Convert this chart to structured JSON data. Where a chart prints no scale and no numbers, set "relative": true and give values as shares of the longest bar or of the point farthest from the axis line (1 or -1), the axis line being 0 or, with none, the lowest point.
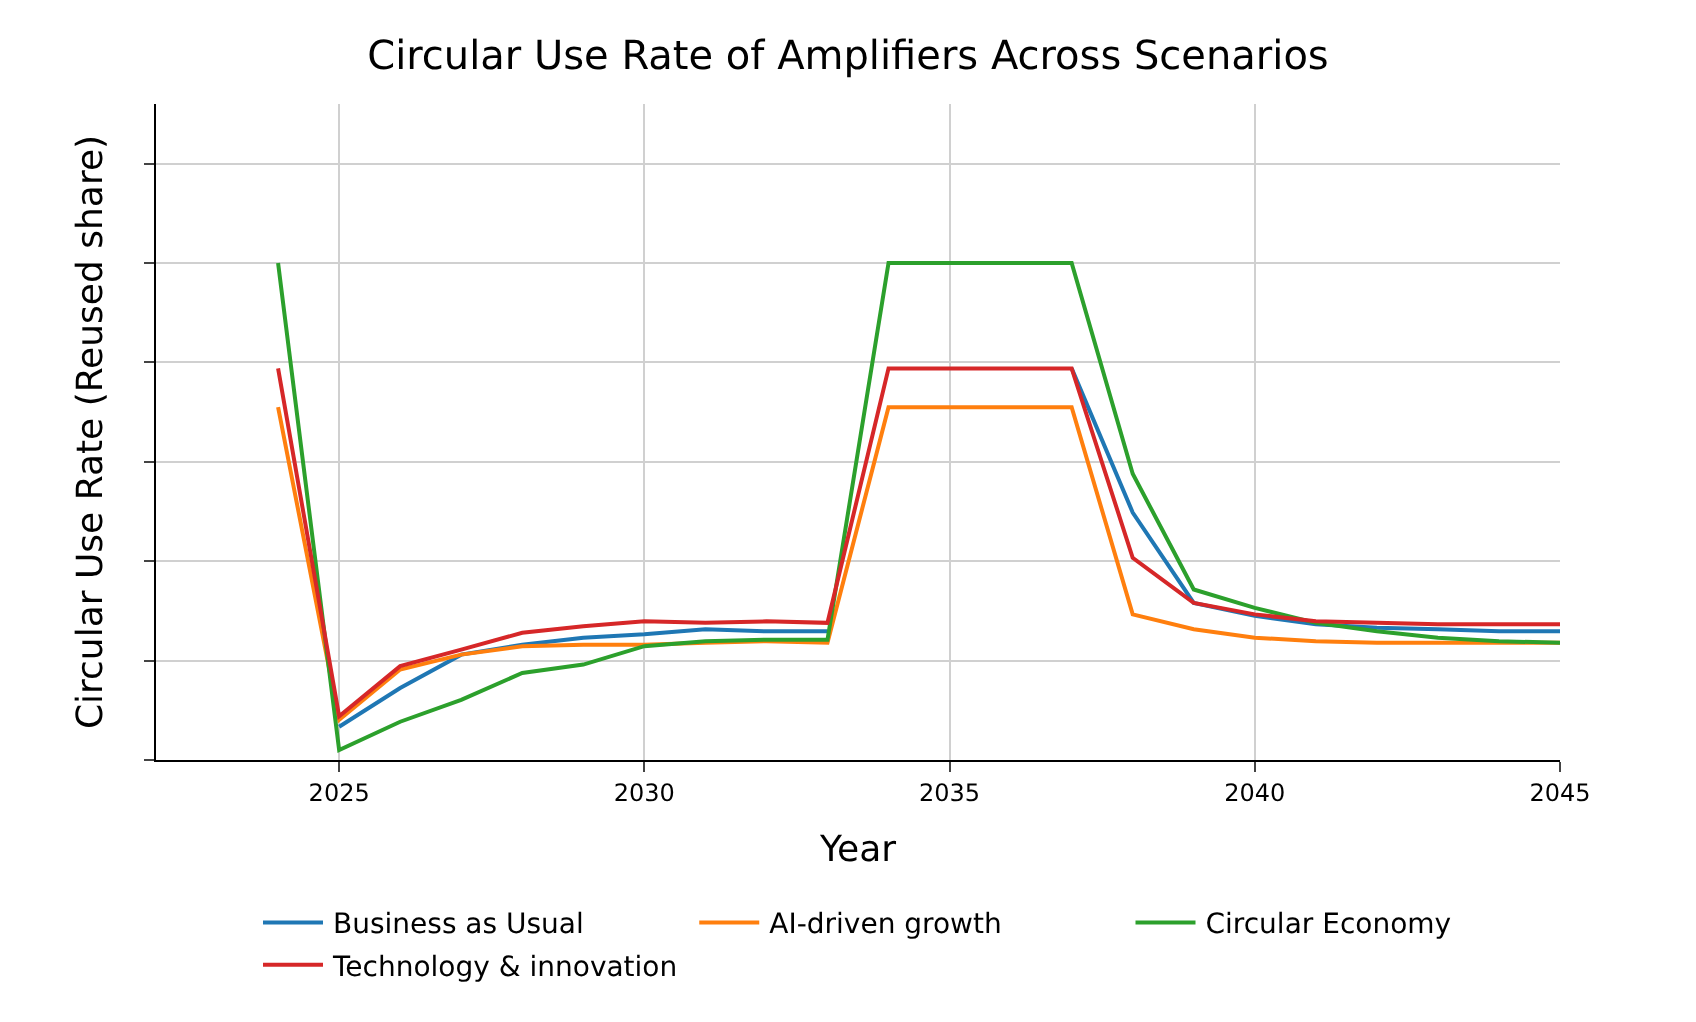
{
  "chart_data": {
    "type": "line",
    "title": "Circular Use Rate of Amplifiers Across Scenarios",
    "xlabel": "Year",
    "ylabel": "Circular Use Rate (Reused share)",
    "relative": true,
    "tick_labels": "x",
    "grid": true,
    "legend": "bottom",
    "line_style": "solid",
    "x": [
      2024,
      2025,
      2026,
      2027,
      2028,
      2029,
      2030,
      2031,
      2032,
      2033,
      2034,
      2035,
      2036,
      2037,
      2038,
      2039,
      2040,
      2041,
      2042,
      2043,
      2044,
      2045
    ],
    "xlim": [
      2022,
      2045
    ],
    "xticks": [
      2025,
      2030,
      2035,
      2040,
      2045
    ],
    "series": [
      {
        "name": "Business as Usual",
        "color": "#1f77b4",
        "values": [
          null,
          0.067,
          0.145,
          0.212,
          0.232,
          0.246,
          0.253,
          0.263,
          0.259,
          0.259,
          null,
          null,
          null,
          0.788,
          0.498,
          0.316,
          0.29,
          0.273,
          0.266,
          0.263,
          0.259,
          0.259
        ]
      },
      {
        "name": "AI-driven growth",
        "color": "#ff7f0e",
        "values": [
          0.71,
          0.081,
          0.182,
          0.212,
          0.229,
          0.232,
          0.232,
          0.236,
          0.239,
          0.236,
          0.71,
          0.71,
          0.71,
          0.71,
          0.293,
          0.263,
          0.246,
          0.239,
          0.236,
          0.236,
          0.236,
          0.236
        ]
      },
      {
        "name": "Circular Economy",
        "color": "#2ca02c",
        "values": [
          1.0,
          0.02,
          0.077,
          0.121,
          0.175,
          0.192,
          0.229,
          0.239,
          0.242,
          0.242,
          1.0,
          1.0,
          1.0,
          1.0,
          0.576,
          0.343,
          0.306,
          0.276,
          0.259,
          0.246,
          0.239,
          0.236
        ]
      },
      {
        "name": "Technology & innovation",
        "color": "#d62728",
        "values": [
          0.788,
          0.088,
          0.189,
          0.222,
          0.256,
          0.269,
          0.279,
          0.276,
          0.279,
          0.276,
          0.788,
          0.788,
          0.788,
          0.788,
          0.407,
          0.316,
          0.293,
          0.279,
          0.276,
          0.273,
          0.273,
          0.273
        ]
      }
    ]
  }
}
